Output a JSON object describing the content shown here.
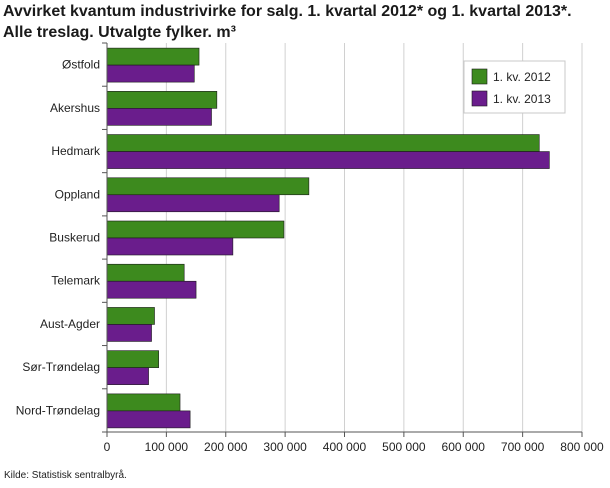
{
  "title_line1": "Avvirket kvantum industrivirke for salg. 1. kvartal 2012* og 1. kvartal 2013*.",
  "title_line2": "Alle treslag. Utvalgte fylker. m³",
  "source": "Kilde: Statistisk sentralbyrå.",
  "colors": {
    "series1": "#3d8a1e",
    "series2": "#6a1d8c",
    "grid": "#d0d0d0",
    "axis": "#555555"
  },
  "chart_data": {
    "type": "bar",
    "orientation": "horizontal",
    "categories": [
      "Østfold",
      "Akershus",
      "Hedmark",
      "Oppland",
      "Buskerud",
      "Telemark",
      "Aust-Agder",
      "Sør-Trøndelag",
      "Nord-Trøndelag"
    ],
    "series": [
      {
        "name": "1. kv. 2012",
        "values": [
          155000,
          185000,
          728000,
          340000,
          298000,
          130000,
          80000,
          87000,
          123000
        ]
      },
      {
        "name": "1. kv. 2013",
        "values": [
          147000,
          176000,
          745000,
          290000,
          212000,
          150000,
          75000,
          70000,
          140000
        ]
      }
    ],
    "xlim": [
      0,
      800000
    ],
    "xticks": [
      0,
      100000,
      200000,
      300000,
      400000,
      500000,
      600000,
      700000,
      800000
    ],
    "xtick_labels": [
      "0",
      "100 000",
      "200 000",
      "300 000",
      "400 000",
      "500 000",
      "600 000",
      "700 000",
      "800 000"
    ],
    "grid": true,
    "legend_position": "top-right"
  }
}
